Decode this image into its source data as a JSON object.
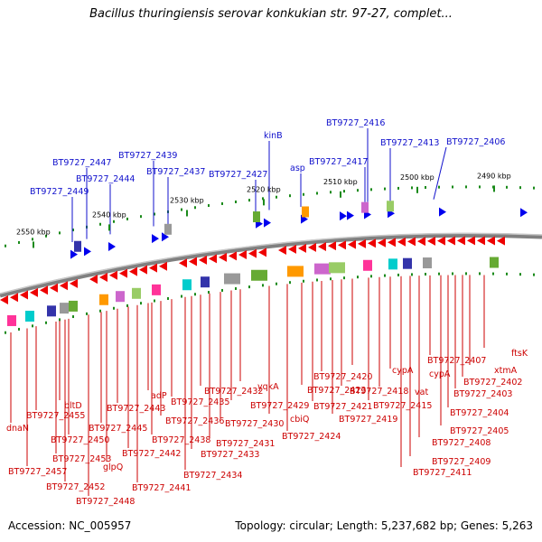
{
  "title": "Bacillus thuringiensis serovar konkukian str. 97-27, complet...",
  "footer": {
    "accession": "Accession: NC_005957",
    "summary": "Topology: circular; Length: 5,237,682 bp; Genes: 5,263"
  },
  "colors": {
    "top_labels": "#1010cc",
    "bottom_labels": "#cc0000",
    "forward_genes": "#0000ee",
    "reverse_genes": "#ee0000",
    "ticks": "#1a8a1a",
    "backbone": "#808080"
  },
  "scale_labels": [
    "2550 kbp",
    "2540 kbp",
    "2530 kbp",
    "2520 kbp",
    "2510 kbp",
    "2500 kbp",
    "2490 kbp"
  ],
  "top_labels": [
    "BT9727_2449",
    "BT9727_2447",
    "BT9727_2444",
    "BT9727_2439",
    "BT9727_2437",
    "BT9727_2427",
    "kinB",
    "asp",
    "BT9727_2417",
    "BT9727_2416",
    "BT9727_2413",
    "BT9727_2406"
  ],
  "bottom_labels": [
    "dnaN",
    "BT9727_2457",
    "BT9727_2455",
    "bltD",
    "BT9727_2453",
    "BT9727_2452",
    "BT9727_2450",
    "BT9727_2448",
    "BT9727_2445",
    "glpQ",
    "BT9727_2443",
    "BT9727_2442",
    "BT9727_2441",
    "adP",
    "BT9727_2438",
    "BT9727_2436",
    "BT9727_2435",
    "BT9727_2434",
    "BT9727_2433",
    "BT9727_2432",
    "BT9727_2431",
    "BT9727_2430",
    "BT9727_2429",
    "yqkA",
    "cbiQ",
    "BT9727_2424",
    "BT9727_2423",
    "BT9727_2421",
    "BT9727_2420",
    "BT9727_2419",
    "BT9727_2418",
    "cypA",
    "BT9727_2415",
    "vat",
    "cypA",
    "BT9727_2411",
    "BT9727_2409",
    "BT9727_2408",
    "BT9727_2407",
    "BT9727_2405",
    "BT9727_2404",
    "BT9727_2403",
    "BT9727_2402",
    "xtmA",
    "ftsK"
  ]
}
